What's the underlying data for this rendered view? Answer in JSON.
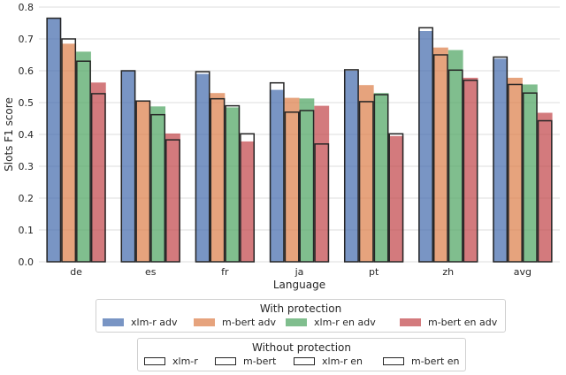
{
  "chart_data": {
    "type": "bar",
    "xlabel": "Language",
    "ylabel": "Slots F1 score",
    "ylim": [
      0,
      0.8
    ],
    "yticks": [
      0.0,
      0.1,
      0.2,
      0.3,
      0.4,
      0.5,
      0.6,
      0.7,
      0.8
    ],
    "ytick_labels": [
      "0.0",
      "0.1",
      "0.2",
      "0.3",
      "0.4",
      "0.5",
      "0.6",
      "0.7",
      "0.8"
    ],
    "grid": true,
    "categories": [
      "de",
      "es",
      "fr",
      "ja",
      "pt",
      "zh",
      "avg"
    ],
    "series": [
      {
        "name": "xlm-r adv",
        "color": "#4c72b0",
        "values": [
          0.765,
          0.6,
          0.59,
          0.54,
          0.6,
          0.725,
          0.638
        ]
      },
      {
        "name": "m-bert adv",
        "color": "#dd8452",
        "values": [
          0.685,
          0.505,
          0.53,
          0.515,
          0.555,
          0.673,
          0.578
        ]
      },
      {
        "name": "xlm-r en adv",
        "color": "#55a868",
        "values": [
          0.66,
          0.488,
          0.485,
          0.513,
          0.53,
          0.665,
          0.557
        ]
      },
      {
        "name": "m-bert en adv",
        "color": "#c44e52",
        "values": [
          0.563,
          0.403,
          0.378,
          0.49,
          0.395,
          0.578,
          0.468
        ]
      }
    ],
    "outline_series": [
      {
        "name": "xlm-r",
        "values": [
          0.765,
          0.6,
          0.597,
          0.562,
          0.603,
          0.735,
          0.643
        ]
      },
      {
        "name": "m-bert",
        "values": [
          0.7,
          0.505,
          0.512,
          0.47,
          0.503,
          0.65,
          0.557
        ]
      },
      {
        "name": "xlm-r en",
        "values": [
          0.63,
          0.462,
          0.49,
          0.475,
          0.525,
          0.602,
          0.53
        ]
      },
      {
        "name": "m-bert en",
        "values": [
          0.528,
          0.383,
          0.402,
          0.37,
          0.402,
          0.57,
          0.443
        ]
      }
    ],
    "legend_with": {
      "title": "With protection",
      "placement": "bottom-center"
    },
    "legend_without": {
      "title": "Without protection",
      "placement": "bottom-center"
    }
  }
}
